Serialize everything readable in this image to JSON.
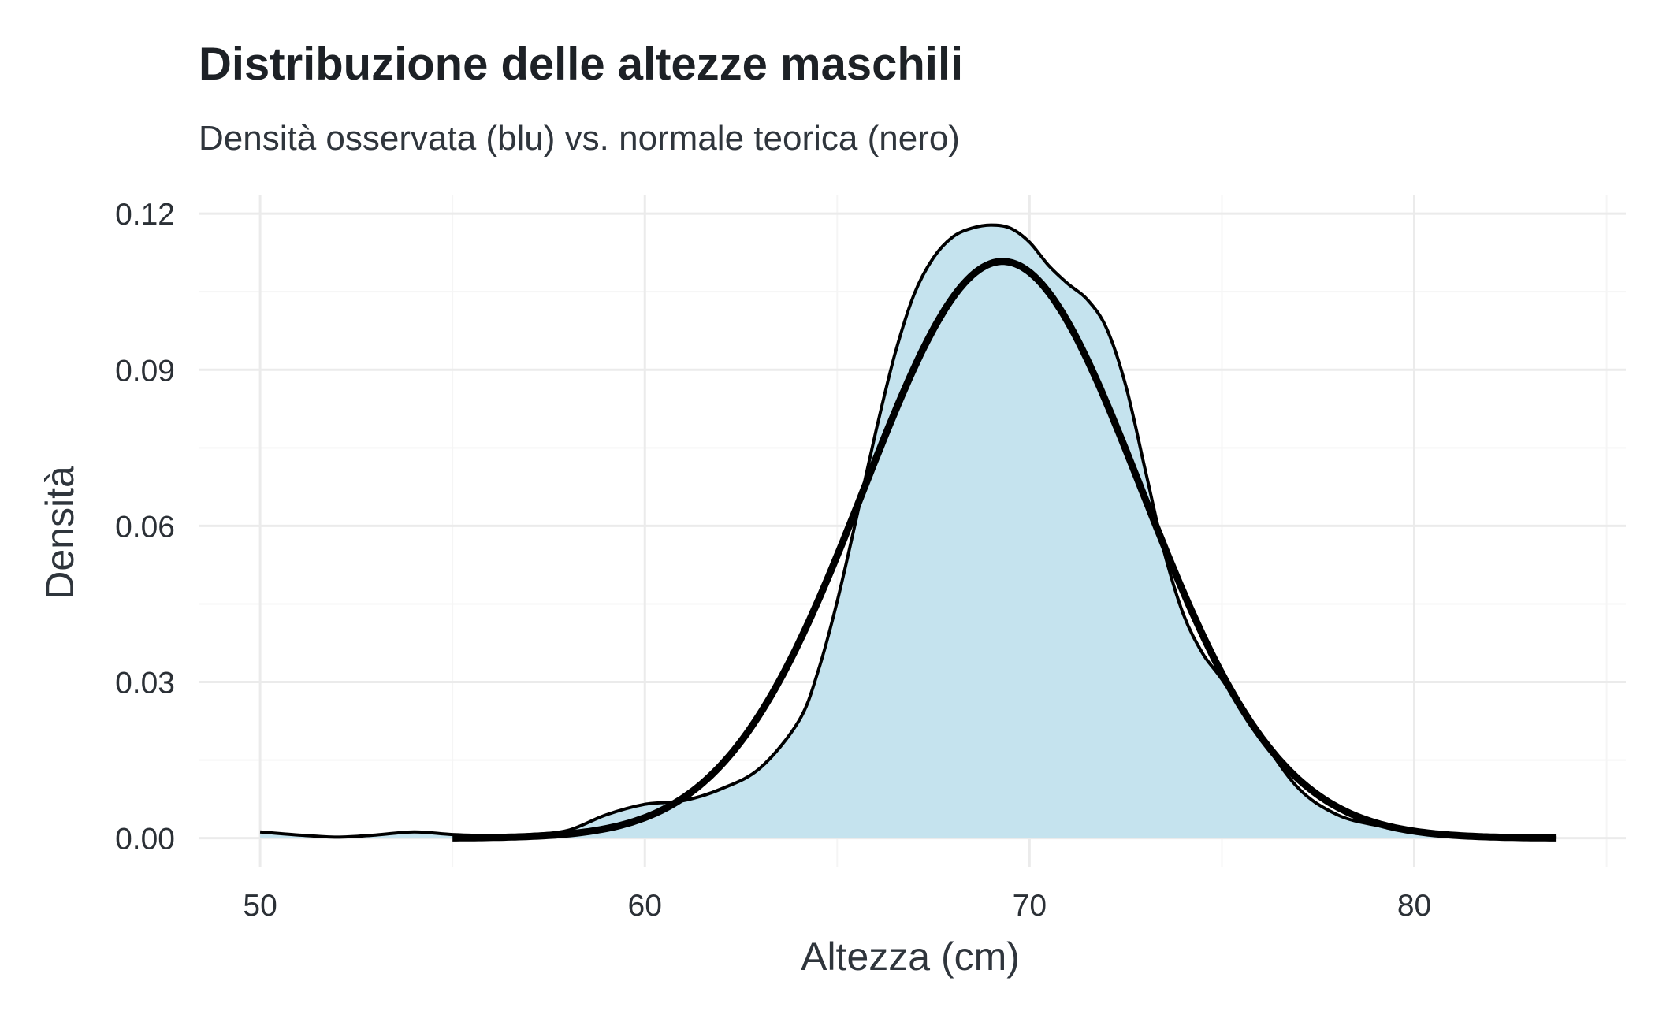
{
  "chart_data": {
    "type": "area",
    "title": "Distribuzione delle altezze maschili",
    "subtitle": "Densità osservata (blu) vs. normale teorica (nero)",
    "xlabel": "Altezza (cm)",
    "ylabel": "Densità",
    "xlim": [
      48.4,
      85.5
    ],
    "ylim": [
      -0.0055,
      0.1235
    ],
    "x_ticks": [
      50,
      60,
      70,
      80
    ],
    "x_minor_ticks": [
      55,
      65,
      75,
      85
    ],
    "y_ticks": [
      0.0,
      0.03,
      0.06,
      0.09,
      0.12
    ],
    "y_tick_labels": [
      "0.00",
      "0.03",
      "0.06",
      "0.09",
      "0.12"
    ],
    "y_minor_ticks": [
      0.015,
      0.045,
      0.075,
      0.105
    ],
    "grid": true,
    "legend": "none",
    "colors": {
      "fill": "#c5e3ee",
      "line": "#000000",
      "grid_major": "#ebebeb",
      "grid_minor": "#f5f5f5"
    },
    "series": [
      {
        "style": "filled density",
        "x": [
          50,
          51,
          52,
          53,
          54,
          55,
          56,
          57,
          58,
          59,
          60,
          61,
          62,
          63,
          64,
          64.5,
          65,
          65.5,
          66,
          66.5,
          67,
          67.5,
          68,
          68.5,
          69,
          69.5,
          70,
          70.5,
          71,
          71.5,
          72,
          72.5,
          73,
          73.5,
          74,
          74.5,
          75,
          76,
          77,
          78,
          79,
          80,
          81,
          82,
          83,
          83.7
        ],
        "y": [
          0.0012,
          0.0006,
          0.0002,
          0.0006,
          0.0012,
          0.0007,
          0.0005,
          0.0007,
          0.0015,
          0.0045,
          0.0065,
          0.0072,
          0.0095,
          0.0135,
          0.0225,
          0.032,
          0.0455,
          0.0615,
          0.078,
          0.093,
          0.1045,
          0.1115,
          0.1155,
          0.1172,
          0.1178,
          0.1172,
          0.1145,
          0.11,
          0.1065,
          0.1035,
          0.098,
          0.087,
          0.071,
          0.055,
          0.043,
          0.0355,
          0.0305,
          0.0195,
          0.0095,
          0.0045,
          0.0025,
          0.0015,
          0.0008,
          0.0004,
          0.0002,
          0.0001
        ]
      },
      {
        "style": "normal curve",
        "mean": 69.3,
        "sd": 3.6,
        "x_range": [
          55,
          83.7
        ]
      }
    ]
  }
}
